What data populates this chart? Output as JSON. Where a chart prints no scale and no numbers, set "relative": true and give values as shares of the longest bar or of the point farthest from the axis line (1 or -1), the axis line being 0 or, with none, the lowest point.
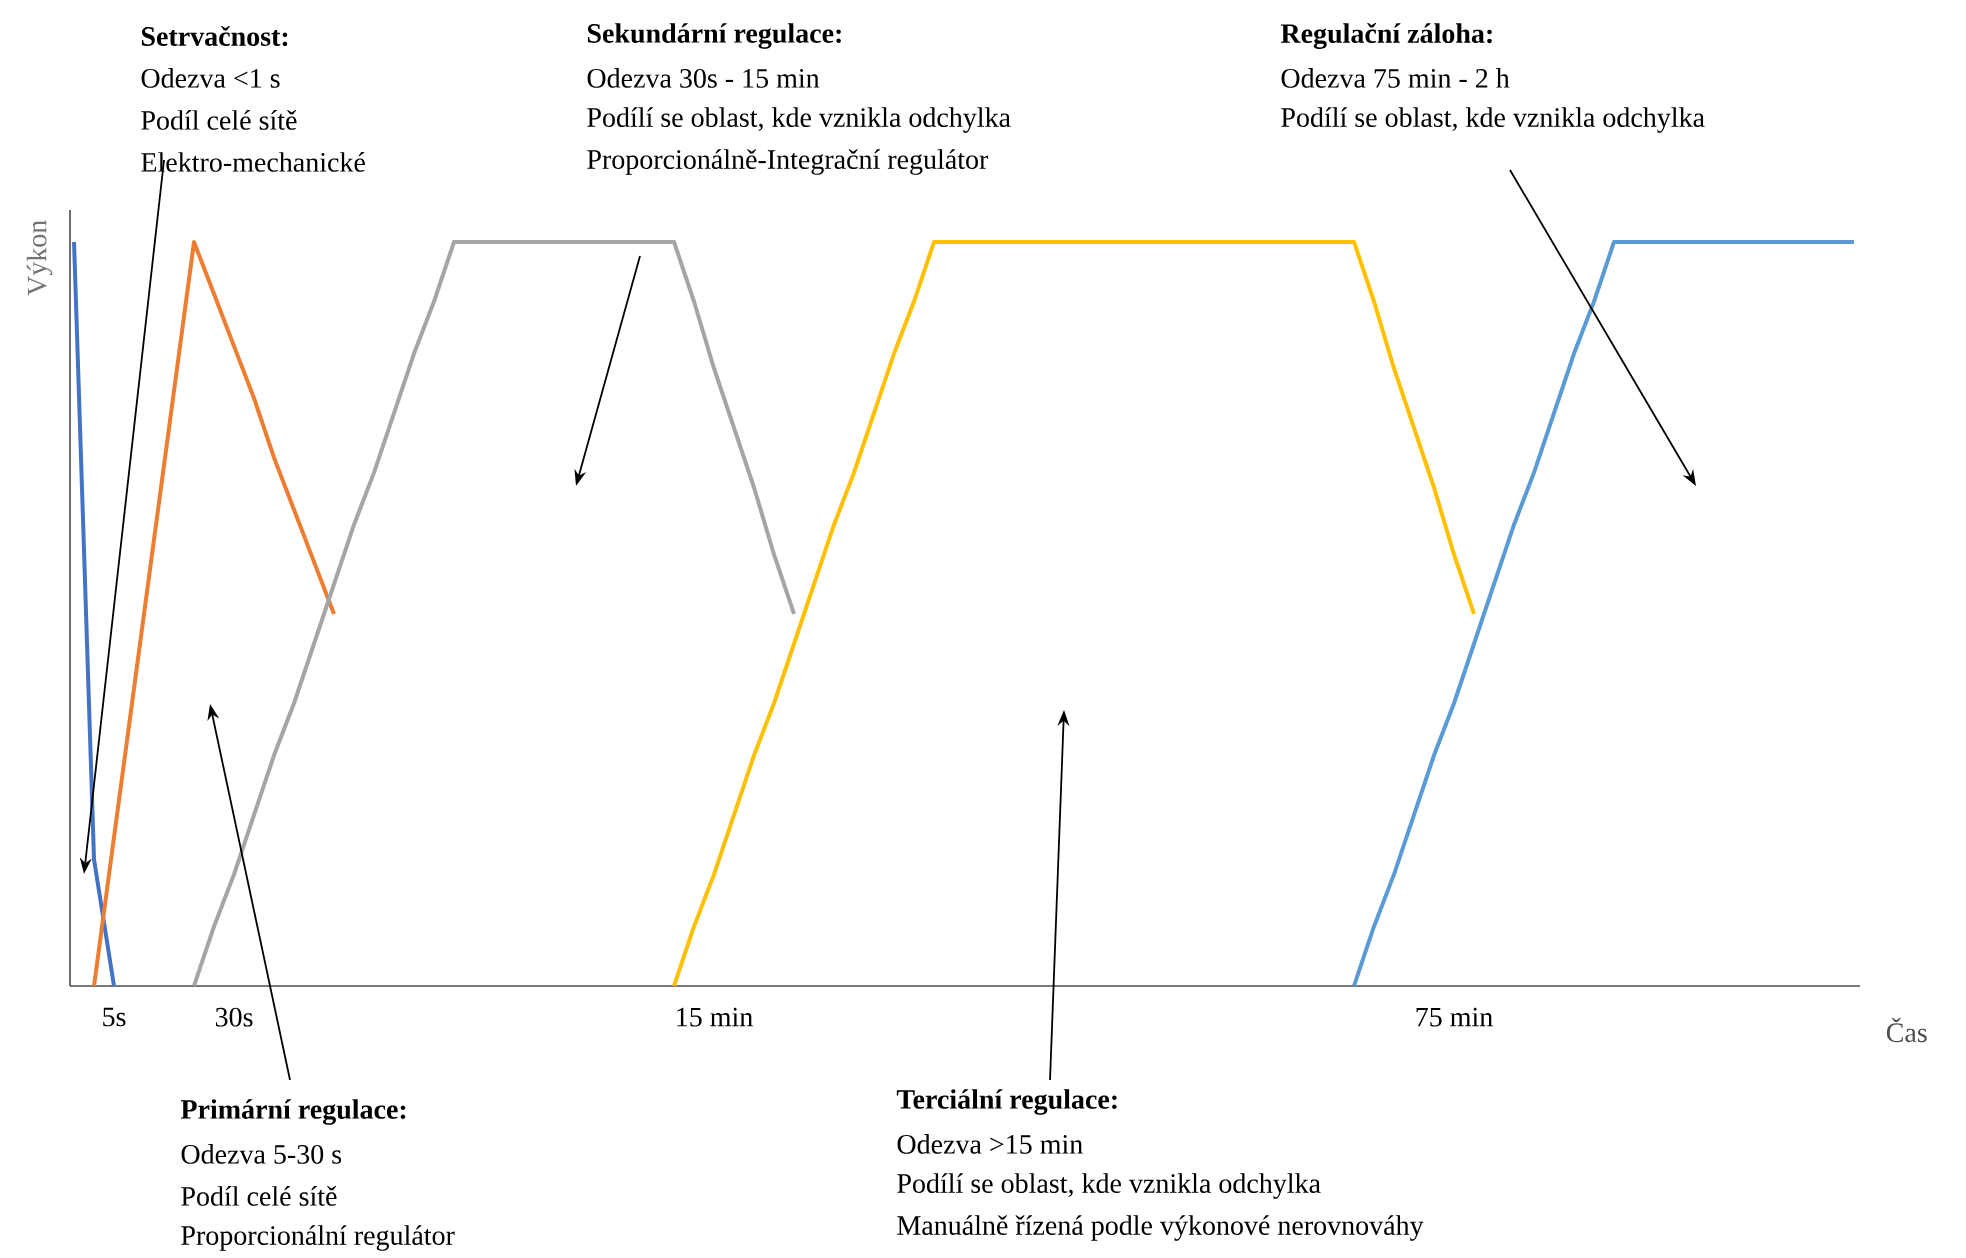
{
  "chart_data": {
    "type": "line",
    "relative": true,
    "xlabel": "Čas",
    "ylabel": "Výkon",
    "categories": [
      null,
      null,
      "5s",
      null,
      null,
      null,
      null,
      null,
      "30s",
      null,
      null,
      null,
      null,
      null,
      null,
      null,
      null,
      null,
      null,
      null,
      null,
      null,
      null,
      null,
      null,
      null,
      null,
      null,
      null,
      null,
      null,
      null,
      "15 min",
      null,
      null,
      null,
      null,
      null,
      null,
      null,
      null,
      null,
      null,
      null,
      null,
      null,
      null,
      null,
      null,
      null,
      null,
      null,
      null,
      null,
      null,
      null,
      null,
      null,
      null,
      null,
      null,
      null,
      null,
      null,
      null,
      null,
      null,
      null,
      null,
      "75 min",
      null,
      null,
      null,
      null,
      null,
      null,
      null,
      null,
      null,
      null,
      null,
      null,
      null,
      null,
      null,
      null,
      null,
      null,
      null,
      null
    ],
    "series": [
      {
        "color": "#4472c4",
        "values": [
          1,
          0.17,
          0,
          null,
          null,
          null,
          null,
          null,
          null,
          null,
          null,
          null,
          null,
          null,
          null,
          null,
          null,
          null,
          null,
          null,
          null,
          null,
          null,
          null,
          null,
          null,
          null,
          null,
          null,
          null,
          null,
          null,
          null,
          null,
          null,
          null,
          null,
          null,
          null,
          null,
          null,
          null,
          null,
          null,
          null,
          null,
          null,
          null,
          null,
          null,
          null,
          null,
          null,
          null,
          null,
          null,
          null,
          null,
          null,
          null,
          null,
          null,
          null,
          null,
          null,
          null,
          null,
          null,
          null,
          null,
          null,
          null,
          null,
          null,
          null,
          null,
          null,
          null,
          null,
          null,
          null,
          null,
          null,
          null,
          null,
          null,
          null,
          null,
          null,
          null
        ]
      },
      {
        "color": "#ed7d31",
        "values": [
          null,
          0,
          0.2,
          0.4,
          0.6,
          0.8,
          1,
          0.93,
          0.86,
          0.79,
          0.71,
          0.64,
          0.57,
          0.5,
          null,
          null,
          null,
          null,
          null,
          null,
          null,
          null,
          null,
          null,
          null,
          null,
          null,
          null,
          null,
          null,
          null,
          null,
          null,
          null,
          null,
          null,
          null,
          null,
          null,
          null,
          null,
          null,
          null,
          null,
          null,
          null,
          null,
          null,
          null,
          null,
          null,
          null,
          null,
          null,
          null,
          null,
          null,
          null,
          null,
          null,
          null,
          null,
          null,
          null,
          null,
          null,
          null,
          null,
          null,
          null,
          null,
          null,
          null,
          null,
          null,
          null,
          null,
          null,
          null,
          null,
          null,
          null,
          null,
          null,
          null,
          null,
          null,
          null,
          null,
          null
        ]
      },
      {
        "color": "#a5a5a5",
        "values": [
          null,
          null,
          null,
          null,
          null,
          null,
          0,
          0.08,
          0.15,
          0.23,
          0.31,
          0.38,
          0.46,
          0.54,
          0.62,
          0.69,
          0.77,
          0.85,
          0.92,
          1,
          1,
          1,
          1,
          1,
          1,
          1,
          1,
          1,
          1,
          1,
          1,
          0.92,
          0.83,
          0.75,
          0.67,
          0.58,
          0.5,
          null,
          null,
          null,
          null,
          null,
          null,
          null,
          null,
          null,
          null,
          null,
          null,
          null,
          null,
          null,
          null,
          null,
          null,
          null,
          null,
          null,
          null,
          null,
          null,
          null,
          null,
          null,
          null,
          null,
          null,
          null,
          null,
          null,
          null,
          null,
          null,
          null,
          null,
          null,
          null,
          null,
          null,
          null,
          null,
          null,
          null,
          null,
          null,
          null,
          null,
          null,
          null,
          null
        ]
      },
      {
        "color": "#ffc000",
        "values": [
          null,
          null,
          null,
          null,
          null,
          null,
          null,
          null,
          null,
          null,
          null,
          null,
          null,
          null,
          null,
          null,
          null,
          null,
          null,
          null,
          null,
          null,
          null,
          null,
          null,
          null,
          null,
          null,
          null,
          null,
          0,
          0.08,
          0.15,
          0.23,
          0.31,
          0.38,
          0.46,
          0.54,
          0.62,
          0.69,
          0.77,
          0.85,
          0.92,
          1,
          1,
          1,
          1,
          1,
          1,
          1,
          1,
          1,
          1,
          1,
          1,
          1,
          1,
          1,
          1,
          1,
          1,
          1,
          1,
          1,
          1,
          0.92,
          0.83,
          0.75,
          0.67,
          0.58,
          0.5,
          null,
          null,
          null,
          null,
          null,
          null,
          null,
          null,
          null,
          null,
          null,
          null,
          null,
          null,
          null,
          null,
          null,
          null,
          null
        ]
      },
      {
        "color": "#5b9bd5",
        "values": [
          null,
          null,
          null,
          null,
          null,
          null,
          null,
          null,
          null,
          null,
          null,
          null,
          null,
          null,
          null,
          null,
          null,
          null,
          null,
          null,
          null,
          null,
          null,
          null,
          null,
          null,
          null,
          null,
          null,
          null,
          null,
          null,
          null,
          null,
          null,
          null,
          null,
          null,
          null,
          null,
          null,
          null,
          null,
          null,
          null,
          null,
          null,
          null,
          null,
          null,
          null,
          null,
          null,
          null,
          null,
          null,
          null,
          null,
          null,
          null,
          null,
          null,
          null,
          null,
          0,
          0.08,
          0.15,
          0.23,
          0.31,
          0.38,
          0.46,
          0.54,
          0.62,
          0.69,
          0.77,
          0.85,
          0.92,
          1,
          1,
          1,
          1,
          1,
          1,
          1,
          1,
          1,
          1,
          1,
          1,
          1
        ]
      }
    ],
    "annotations": [
      "Setrvačnost:",
      "Odezva <1 s",
      "Podíl celé sítě",
      "Elektro-mechanické",
      "Sekundární regulace:",
      "Odezva 30s - 15 min",
      "Podílí se oblast, kde vznikla odchylka",
      "Proporcionálně-Integrační regulátor",
      "Regulační záloha:",
      "Odezva 75 min - 2 h",
      "Podílí se oblast, kde vznikla odchylka",
      "Primární regulace:",
      "Odezva 5-30 s",
      "Podíl celé sítě",
      "Proporcionální regulátor",
      "Terciální regulace:",
      "Odezva >15 min",
      "Podílí se oblast, kde vznikla odchylka",
      "Manuálně řízená podle výkonové nerovnováhy"
    ]
  }
}
